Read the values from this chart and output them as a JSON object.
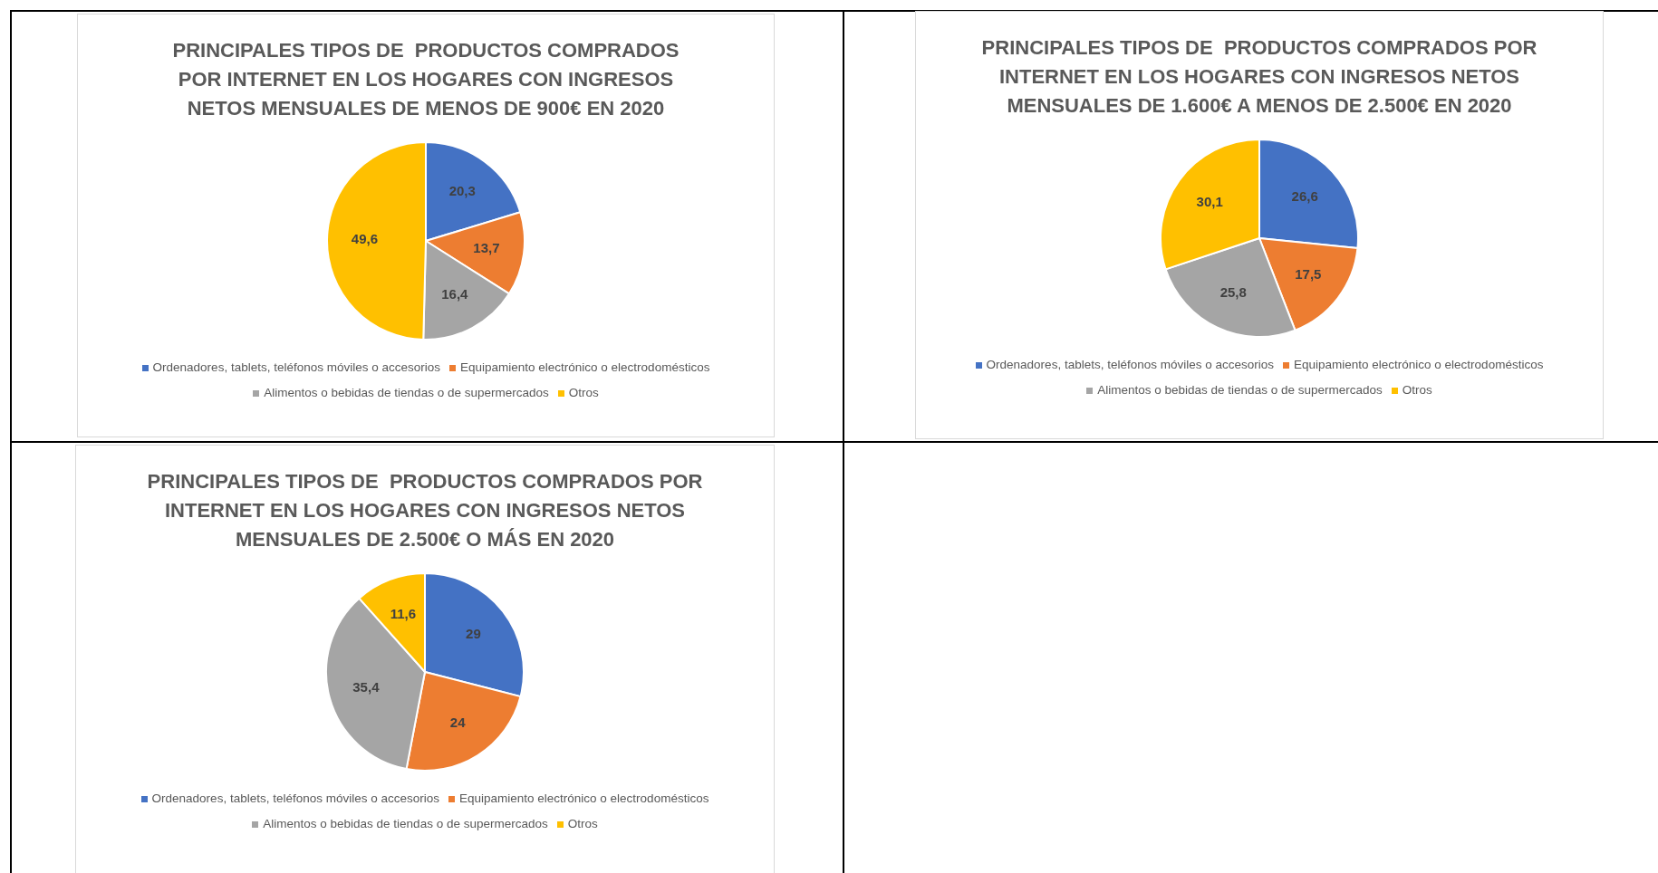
{
  "chart_data": [
    {
      "type": "pie",
      "title": "PRINCIPALES TIPOS DE  PRODUCTOS COMPRADOS POR INTERNET EN LOS HOGARES CON INGRESOS NETOS MENSUALES DE MENOS DE 900€ EN 2020",
      "categories": [
        "Ordenadores, tablets, teléfonos móviles o accesorios",
        "Equipamiento electrónico o electrodomésticos",
        "Alimentos o bebidas de tiendas o de supermercados",
        "Otros"
      ],
      "values": [
        20.3,
        13.7,
        16.4,
        49.6
      ],
      "value_labels": [
        "20,3",
        "13,7",
        "16,4",
        "49,6"
      ],
      "colors": [
        "#4472c4",
        "#ed7d31",
        "#a5a5a5",
        "#ffc000"
      ],
      "legend": "bottom"
    },
    {
      "type": "pie",
      "title": "PRINCIPALES TIPOS DE  PRODUCTOS COMPRADOS POR INTERNET EN LOS HOGARES CON INGRESOS NETOS MENSUALES DE 1.600€ A MENOS DE 2.500€ EN 2020",
      "categories": [
        "Ordenadores, tablets, teléfonos móviles o accesorios",
        "Equipamiento electrónico o electrodomésticos",
        "Alimentos o bebidas de tiendas o de supermercados",
        "Otros"
      ],
      "values": [
        26.6,
        17.5,
        25.8,
        30.1
      ],
      "value_labels": [
        "26,6",
        "17,5",
        "25,8",
        "30,1"
      ],
      "colors": [
        "#4472c4",
        "#ed7d31",
        "#a5a5a5",
        "#ffc000"
      ],
      "legend": "bottom"
    },
    {
      "type": "pie",
      "title": "PRINCIPALES TIPOS DE  PRODUCTOS COMPRADOS POR INTERNET EN LOS HOGARES CON INGRESOS NETOS MENSUALES DE 2.500€ O MÁS EN 2020",
      "categories": [
        "Ordenadores, tablets, teléfonos móviles o accesorios",
        "Equipamiento electrónico o electrodomésticos",
        "Alimentos o bebidas de tiendas o de supermercados",
        "Otros"
      ],
      "values": [
        29,
        24,
        35.4,
        11.6
      ],
      "value_labels": [
        "29",
        "24",
        "35,4",
        "11,6"
      ],
      "colors": [
        "#4472c4",
        "#ed7d31",
        "#a5a5a5",
        "#ffc000"
      ],
      "legend": "bottom"
    }
  ]
}
